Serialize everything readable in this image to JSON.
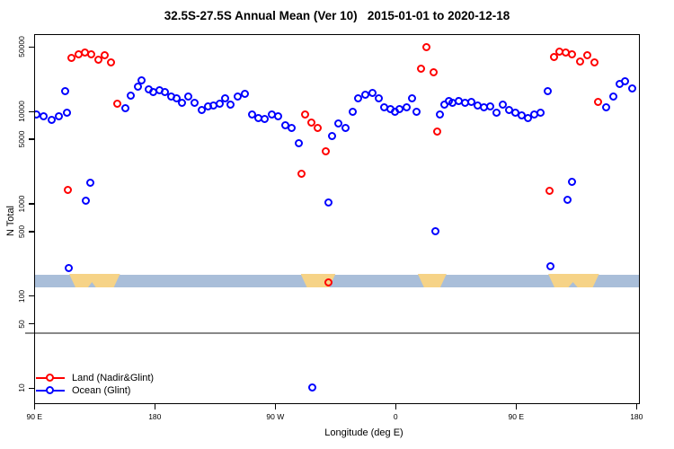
{
  "title": "32.5S-27.5S Annual Mean (Ver 10)   2015-01-01 to 2020-12-18",
  "x_axis_label": "Longitude (deg E)",
  "y_axis_label": "N Total",
  "legend": [
    {
      "label": "Land (Nadir&Glint)",
      "color": "#FF0000"
    },
    {
      "label": "Ocean (Glint)",
      "color": "#0000FF"
    }
  ],
  "reference_line": {
    "value": 40,
    "color": "#888888"
  },
  "chart_data": {
    "type": "scatter",
    "title": "32.5S-27.5S Annual Mean (Ver 10)   2015-01-01 to 2020-12-18",
    "xlabel": "Longitude (deg E)",
    "ylabel": "N Total",
    "y_scale": "log",
    "ylim": [
      7,
      60000
    ],
    "x_axis_note": "axis position in degrees; runs 90E eastward wrapping past 180 and 0 back to 180 (90..540); first 90 deg of data repeated at right",
    "x_ticks": [
      {
        "pos": 90,
        "label": "90 E"
      },
      {
        "pos": 180,
        "label": "180"
      },
      {
        "pos": 270,
        "label": "90 W"
      },
      {
        "pos": 360,
        "label": "0"
      },
      {
        "pos": 450,
        "label": "90 E"
      },
      {
        "pos": 540,
        "label": "180"
      }
    ],
    "y_ticks": [
      50000,
      10000,
      5000,
      1000,
      500,
      100,
      50,
      10
    ],
    "grid": false,
    "legend_position": "bottom-left",
    "series": [
      {
        "name": "Land (Nadir&Glint)",
        "color": "#FF0000",
        "points": [
          [
            115.3,
            1390
          ],
          [
            117.8,
            37800
          ],
          [
            123.4,
            41600
          ],
          [
            128.3,
            43200
          ],
          [
            133,
            41600
          ],
          [
            138,
            35900
          ],
          [
            142.9,
            40600
          ],
          [
            147.6,
            33700
          ],
          [
            152.5,
            12000
          ],
          [
            289.8,
            2080
          ],
          [
            292.6,
            9100
          ],
          [
            297.1,
            7600
          ],
          [
            302.2,
            6600
          ],
          [
            307.9,
            3700
          ],
          [
            310.1,
            140
          ],
          [
            379.5,
            29000
          ],
          [
            383.3,
            49000
          ],
          [
            388.4,
            26500
          ],
          [
            391.1,
            6000
          ],
          [
            475.1,
            1380
          ],
          [
            478.5,
            38600
          ],
          [
            482.9,
            43900
          ],
          [
            487.4,
            42900
          ],
          [
            492.3,
            41600
          ],
          [
            498.1,
            34300
          ],
          [
            503.5,
            40600
          ],
          [
            508.7,
            33700
          ],
          [
            511.8,
            12600
          ]
        ]
      },
      {
        "name": "Ocean (Glint)",
        "color": "#0000FF",
        "points": [
          [
            92,
            9300
          ],
          [
            97.2,
            8700
          ],
          [
            103.2,
            8000
          ],
          [
            108.8,
            8800
          ],
          [
            114.4,
            9600
          ],
          [
            113.3,
            16600
          ],
          [
            115.8,
            200
          ],
          [
            128.7,
            1060
          ],
          [
            132.1,
            1670
          ],
          [
            158.1,
            10800
          ],
          [
            162.5,
            14800
          ],
          [
            167.5,
            18300
          ],
          [
            170.4,
            21700
          ],
          [
            175.6,
            17200
          ],
          [
            179.3,
            16000
          ],
          [
            183.8,
            16900
          ],
          [
            187.9,
            16000
          ],
          [
            192.4,
            14300
          ],
          [
            196.8,
            13800
          ],
          [
            200.6,
            12300
          ],
          [
            205.1,
            14300
          ],
          [
            210.2,
            12300
          ],
          [
            215.2,
            10400
          ],
          [
            220.3,
            11200
          ],
          [
            224.1,
            11400
          ],
          [
            228.6,
            12000
          ],
          [
            233.1,
            13800
          ],
          [
            237.1,
            11700
          ],
          [
            242.1,
            14300
          ],
          [
            247.8,
            15300
          ],
          [
            252.8,
            9100
          ],
          [
            257.9,
            8500
          ],
          [
            262.4,
            8300
          ],
          [
            267.6,
            9300
          ],
          [
            272.5,
            8800
          ],
          [
            277.7,
            7000
          ],
          [
            282.6,
            6500
          ],
          [
            287.7,
            4500
          ],
          [
            298,
            10
          ],
          [
            310.1,
            1030
          ],
          [
            312.8,
            5400
          ],
          [
            317.3,
            7300
          ],
          [
            322.8,
            6600
          ],
          [
            328.4,
            9800
          ],
          [
            332.4,
            13800
          ],
          [
            337.8,
            15100
          ],
          [
            343,
            15700
          ],
          [
            347.5,
            13800
          ],
          [
            351.9,
            11000
          ],
          [
            356.4,
            10600
          ],
          [
            359.8,
            9800
          ],
          [
            363.2,
            10600
          ],
          [
            368.3,
            11000
          ],
          [
            372.8,
            13800
          ],
          [
            375.9,
            9800
          ],
          [
            390,
            500
          ],
          [
            393.4,
            9300
          ],
          [
            396.8,
            11900
          ],
          [
            400.1,
            13000
          ],
          [
            402.8,
            12300
          ],
          [
            407.5,
            12900
          ],
          [
            412.2,
            12300
          ],
          [
            416.9,
            12600
          ],
          [
            421.6,
            11500
          ],
          [
            426.3,
            11000
          ],
          [
            431,
            11300
          ],
          [
            435.7,
            9600
          ],
          [
            440.4,
            11800
          ],
          [
            445.1,
            10300
          ],
          [
            449.8,
            9600
          ],
          [
            454.5,
            9000
          ],
          [
            459.2,
            8400
          ],
          [
            463.9,
            9200
          ],
          [
            468.6,
            9600
          ],
          [
            474,
            16600
          ],
          [
            476.2,
            210
          ],
          [
            488.5,
            1090
          ],
          [
            492.3,
            1700
          ],
          [
            517.8,
            11000
          ],
          [
            523,
            14500
          ],
          [
            528,
            19500
          ],
          [
            532,
            21200
          ],
          [
            537,
            17500
          ]
        ]
      }
    ],
    "land_ocean_strip": {
      "description": "horizontal land/ocean cross-section band drawn across plot",
      "ocean_color": "#A9BED9",
      "land_color": "#F6D387",
      "value_band": [
        124,
        170
      ],
      "land_patches": [
        {
          "from": 116,
          "to": 154,
          "notch_from": 130,
          "notch_to": 136
        },
        {
          "from": 289,
          "to": 315
        },
        {
          "from": 376.5,
          "to": 398
        },
        {
          "from": 474,
          "to": 512,
          "notch_from": 489,
          "notch_to": 496
        }
      ]
    }
  }
}
